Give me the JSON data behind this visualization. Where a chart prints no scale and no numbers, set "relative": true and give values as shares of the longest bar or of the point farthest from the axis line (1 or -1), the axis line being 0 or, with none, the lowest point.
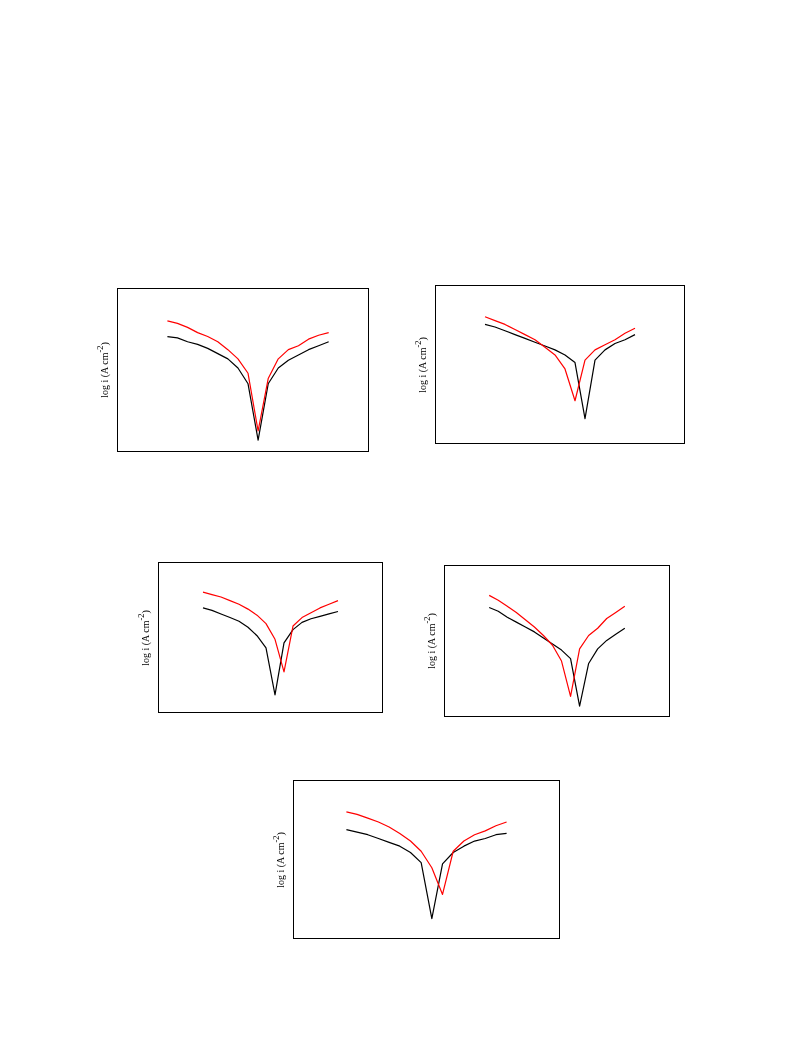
{
  "chart_data": [
    {
      "type": "line",
      "relative": true,
      "ylabel": "log i (A cm$^{-2}$)",
      "tick_labels": false,
      "categories": [
        null,
        null,
        null,
        null,
        null,
        null,
        null,
        null,
        null,
        null,
        null,
        null,
        null,
        null,
        null,
        null,
        null,
        null,
        null,
        null,
        null,
        null,
        null,
        null,
        null,
        null
      ],
      "series": [
        {
          "color": "#000000",
          "values": [
            null,
            null,
            null,
            null,
            null,
            0.88,
            0.87,
            0.84,
            0.82,
            0.79,
            0.75,
            0.71,
            0.64,
            0.52,
            0.09,
            0.52,
            0.64,
            0.7,
            0.74,
            0.78,
            0.81,
            0.84,
            null,
            null,
            null,
            null
          ]
        },
        {
          "color": "#ff0000",
          "values": [
            null,
            null,
            null,
            null,
            null,
            1.0,
            0.98,
            0.95,
            0.91,
            0.88,
            0.84,
            0.78,
            0.71,
            0.6,
            0.16,
            0.56,
            0.71,
            0.78,
            0.81,
            0.86,
            0.89,
            0.91,
            null,
            null,
            null,
            null
          ]
        }
      ]
    },
    {
      "type": "line",
      "relative": true,
      "ylabel": "log i (A cm$^{-2}$)",
      "tick_labels": false,
      "categories": [
        null,
        null,
        null,
        null,
        null,
        null,
        null,
        null,
        null,
        null,
        null,
        null,
        null,
        null,
        null,
        null,
        null,
        null,
        null,
        null,
        null,
        null,
        null,
        null,
        null,
        null
      ],
      "series": [
        {
          "color": "#000000",
          "values": [
            null,
            null,
            null,
            null,
            null,
            0.94,
            0.92,
            0.89,
            0.86,
            0.83,
            0.8,
            0.77,
            0.74,
            0.7,
            0.64,
            0.2,
            0.66,
            0.74,
            0.79,
            0.82,
            0.86,
            null,
            null,
            null,
            null,
            null
          ]
        },
        {
          "color": "#ff0000",
          "values": [
            null,
            null,
            null,
            null,
            null,
            1.0,
            0.97,
            0.94,
            0.9,
            0.86,
            0.82,
            0.76,
            0.7,
            0.59,
            0.34,
            0.66,
            0.74,
            0.78,
            0.82,
            0.87,
            0.91,
            null,
            null,
            null,
            null,
            null
          ]
        }
      ]
    },
    {
      "type": "line",
      "relative": true,
      "ylabel": "log i (A cm$^{-2}$)",
      "tick_labels": false,
      "categories": [
        null,
        null,
        null,
        null,
        null,
        null,
        null,
        null,
        null,
        null,
        null,
        null,
        null,
        null,
        null,
        null,
        null,
        null,
        null,
        null,
        null,
        null,
        null,
        null,
        null,
        null
      ],
      "series": [
        {
          "color": "#000000",
          "values": [
            null,
            null,
            null,
            null,
            null,
            0.87,
            0.85,
            0.82,
            0.79,
            0.76,
            0.71,
            0.64,
            0.54,
            0.15,
            0.58,
            0.69,
            0.75,
            0.78,
            0.8,
            0.82,
            0.84,
            null,
            null,
            null,
            null,
            null
          ]
        },
        {
          "color": "#ff0000",
          "values": [
            null,
            null,
            null,
            null,
            null,
            1.0,
            0.98,
            0.96,
            0.93,
            0.9,
            0.86,
            0.81,
            0.74,
            0.61,
            0.34,
            0.72,
            0.79,
            0.83,
            0.87,
            0.9,
            0.93,
            null,
            null,
            null,
            null,
            null
          ]
        }
      ]
    },
    {
      "type": "line",
      "relative": true,
      "ylabel": "log i (A cm$^{-2}$)",
      "tick_labels": false,
      "categories": [
        null,
        null,
        null,
        null,
        null,
        null,
        null,
        null,
        null,
        null,
        null,
        null,
        null,
        null,
        null,
        null,
        null,
        null,
        null,
        null,
        null,
        null,
        null,
        null,
        null,
        null
      ],
      "series": [
        {
          "color": "#000000",
          "values": [
            null,
            null,
            null,
            null,
            null,
            0.9,
            0.87,
            0.82,
            0.78,
            0.74,
            0.7,
            0.65,
            0.6,
            0.55,
            0.48,
            0.09,
            0.44,
            0.56,
            0.63,
            0.68,
            0.73,
            null,
            null,
            null,
            null,
            null
          ]
        },
        {
          "color": "#ff0000",
          "values": [
            null,
            null,
            null,
            null,
            null,
            1.0,
            0.96,
            0.91,
            0.86,
            0.8,
            0.74,
            0.67,
            0.59,
            0.46,
            0.17,
            0.56,
            0.67,
            0.73,
            0.81,
            0.86,
            0.91,
            null,
            null,
            null,
            null,
            null
          ]
        }
      ]
    },
    {
      "type": "line",
      "relative": true,
      "ylabel": "log i (A cm$^{-2}$)",
      "tick_labels": false,
      "categories": [
        null,
        null,
        null,
        null,
        null,
        null,
        null,
        null,
        null,
        null,
        null,
        null,
        null,
        null,
        null,
        null,
        null,
        null,
        null,
        null,
        null,
        null,
        null,
        null,
        null,
        null
      ],
      "series": [
        {
          "color": "#000000",
          "values": [
            null,
            null,
            null,
            null,
            null,
            0.86,
            0.84,
            0.82,
            0.79,
            0.76,
            0.73,
            0.68,
            0.6,
            0.16,
            0.59,
            0.68,
            0.73,
            0.77,
            0.79,
            0.82,
            0.83,
            null,
            null,
            null,
            null,
            null
          ]
        },
        {
          "color": "#ff0000",
          "values": [
            null,
            null,
            null,
            null,
            null,
            1.0,
            0.98,
            0.95,
            0.92,
            0.88,
            0.83,
            0.77,
            0.69,
            0.56,
            0.35,
            0.69,
            0.77,
            0.82,
            0.85,
            0.89,
            0.92,
            null,
            null,
            null,
            null,
            null
          ]
        }
      ]
    }
  ]
}
